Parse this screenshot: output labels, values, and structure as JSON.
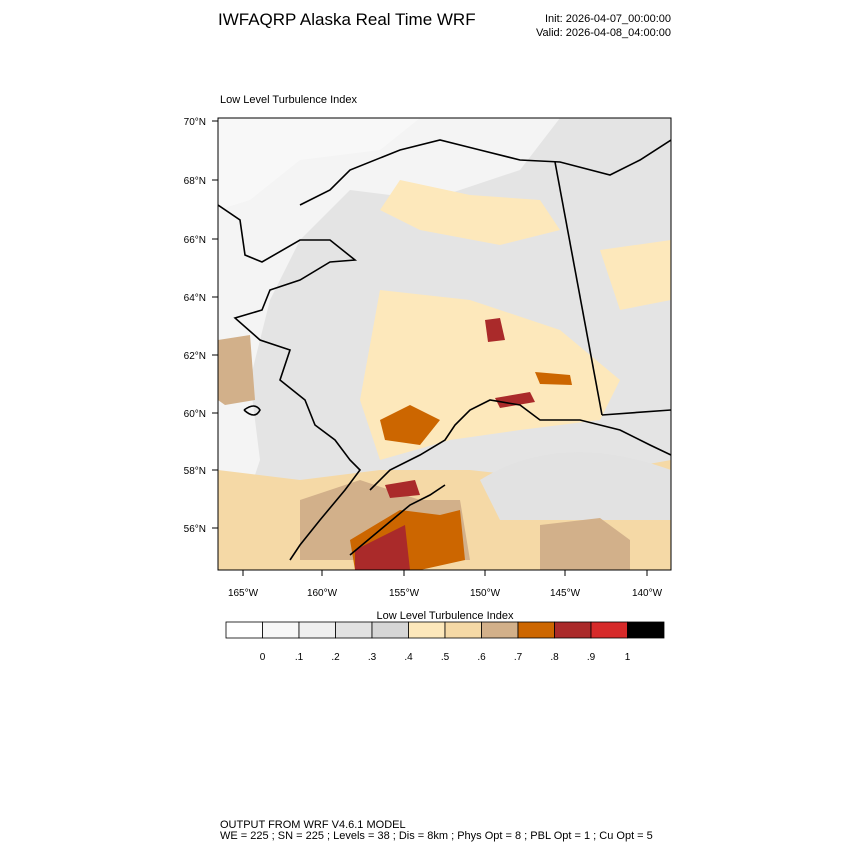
{
  "header": {
    "title": "IWFAQRP Alaska Real Time WRF",
    "init": "Init: 2026-04-07_00:00:00",
    "valid": "Valid: 2026-04-08_04:00:00"
  },
  "map": {
    "title": "Low Level Turbulence Index",
    "lat_labels": [
      "70°N",
      "68°N",
      "66°N",
      "64°N",
      "62°N",
      "60°N",
      "58°N",
      "56°N"
    ],
    "lon_labels": [
      "165°W",
      "160°W",
      "155°W",
      "150°W",
      "145°W",
      "140°W"
    ]
  },
  "colorbar": {
    "title": "Low Level Turbulence Index",
    "labels": [
      "0",
      ".1",
      ".2",
      ".3",
      ".4",
      ".5",
      ".6",
      ".7",
      ".8",
      ".9",
      "1"
    ],
    "colors": [
      "#ffffff",
      "#f7f7f7",
      "#efefef",
      "#e2e2e2",
      "#d6d6d6",
      "#fde8bb",
      "#f5d9a6",
      "#d2b08a",
      "#cc6600",
      "#aa2a2a",
      "#d62a2a",
      "#000000"
    ]
  },
  "footer": [
    "OUTPUT FROM WRF V4.6.1 MODEL",
    "WE = 225 ; SN = 225 ; Levels = 38 ; Dis = 8km ; Phys Opt = 8 ; PBL Opt = 1 ; Cu Opt = 5"
  ]
}
